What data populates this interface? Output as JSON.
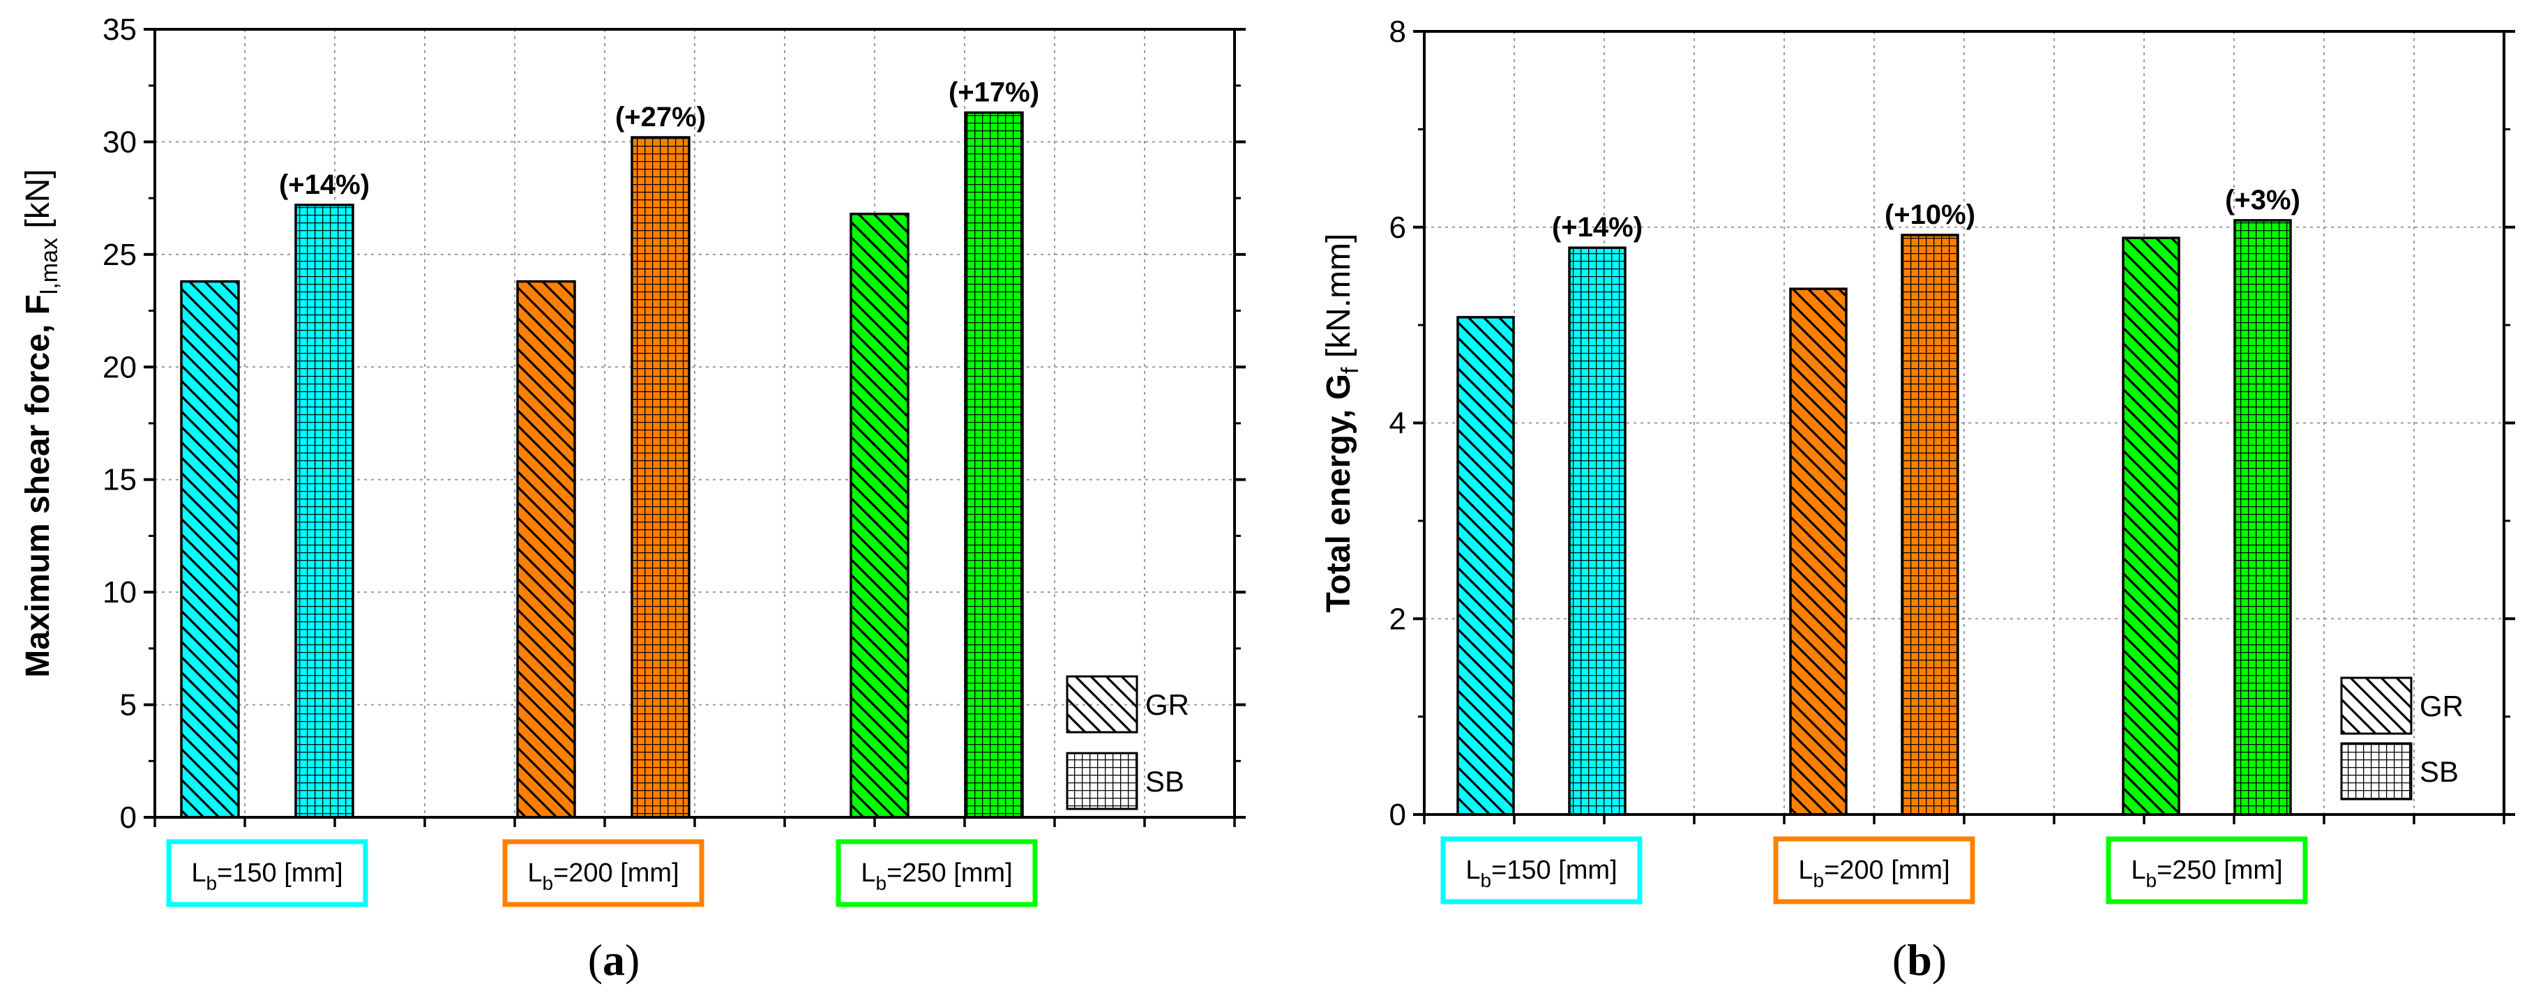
{
  "chart_data": [
    {
      "type": "bar",
      "panel_label": "a",
      "ylabel_main": "Maximum shear force, F",
      "ylabel_sub": "l,max",
      "ylabel_unit": " [kN]",
      "ylim": [
        0,
        35
      ],
      "yticks": [
        0,
        5,
        10,
        15,
        20,
        25,
        30,
        35
      ],
      "grid": true,
      "categories": [
        {
          "prefix": "L",
          "sub": "b",
          "rest": "=150  [mm]",
          "color": "#00ffff"
        },
        {
          "prefix": "L",
          "sub": "b",
          "rest": "=200  [mm]",
          "color": "#ff8000"
        },
        {
          "prefix": "L",
          "sub": "b",
          "rest": "=250  [mm]",
          "color": "#00ff00"
        }
      ],
      "series": [
        {
          "name": "GR",
          "pattern": "hatch",
          "values": [
            23.8,
            23.8,
            26.8
          ]
        },
        {
          "name": "SB",
          "pattern": "grid",
          "values": [
            27.2,
            30.2,
            31.3
          ]
        }
      ],
      "annotations": [
        "(+14%)",
        "(+27%)",
        "(+17%)"
      ],
      "legend": {
        "placement": "bottom-right",
        "entries": [
          "GR",
          "SB"
        ]
      }
    },
    {
      "type": "bar",
      "panel_label": "b",
      "ylabel_main": "Total energy, G",
      "ylabel_sub": "f",
      "ylabel_unit": " [kN.mm]",
      "ylim": [
        0,
        8
      ],
      "yticks": [
        0,
        2,
        4,
        6,
        8
      ],
      "grid": true,
      "categories": [
        {
          "prefix": "L",
          "sub": "b",
          "rest": "=150  [mm]",
          "color": "#00ffff"
        },
        {
          "prefix": "L",
          "sub": "b",
          "rest": "=200  [mm]",
          "color": "#ff8000"
        },
        {
          "prefix": "L",
          "sub": "b",
          "rest": "=250  [mm]",
          "color": "#00ff00"
        }
      ],
      "series": [
        {
          "name": "GR",
          "pattern": "hatch",
          "values": [
            5.08,
            5.37,
            5.89
          ]
        },
        {
          "name": "SB",
          "pattern": "grid",
          "values": [
            5.79,
            5.92,
            6.07
          ]
        }
      ],
      "annotations": [
        "(+14%)",
        "(+10%)",
        "(+3%)"
      ],
      "legend": {
        "placement": "bottom-right",
        "entries": [
          "GR",
          "SB"
        ]
      }
    }
  ]
}
